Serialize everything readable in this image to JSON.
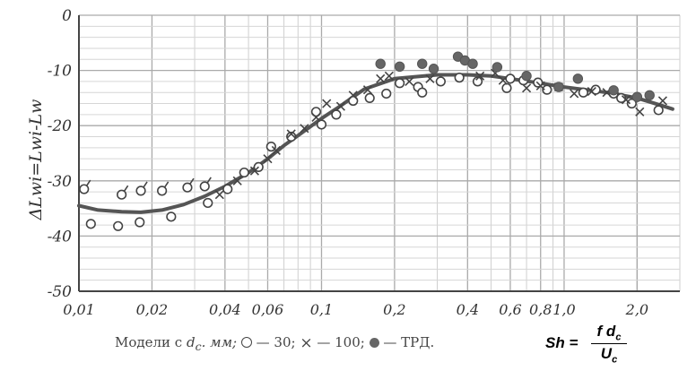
{
  "chart_data": {
    "type": "scatter",
    "title": "",
    "xlabel": "",
    "ylabel": "ΔLwi=Lwi-Lw",
    "xscale": "log",
    "xlim": [
      0.01,
      3.0
    ],
    "ylim": [
      -50,
      0
    ],
    "grid": true,
    "x_ticks": [
      {
        "value": 0.01,
        "label": "0,01"
      },
      {
        "value": 0.02,
        "label": "0,02"
      },
      {
        "value": 0.04,
        "label": "0,04"
      },
      {
        "value": 0.06,
        "label": "0,06"
      },
      {
        "value": 0.1,
        "label": "0,1"
      },
      {
        "value": 0.2,
        "label": "0,2"
      },
      {
        "value": 0.4,
        "label": "0,4"
      },
      {
        "value": 0.6,
        "label": "0,6"
      },
      {
        "value": 0.8,
        "label": "0,8"
      },
      {
        "value": 1.0,
        "label": "1,0"
      },
      {
        "value": 2.0,
        "label": "2,0"
      }
    ],
    "y_ticks": [
      {
        "value": 0,
        "label": "0"
      },
      {
        "value": -10,
        "label": "-10"
      },
      {
        "value": -20,
        "label": "-20"
      },
      {
        "value": -30,
        "label": "-30"
      },
      {
        "value": -40,
        "label": "-40"
      },
      {
        "value": -50,
        "label": "-50"
      }
    ],
    "series": [
      {
        "marker": "open-circle-tailed",
        "points": [
          [
            0.0105,
            -31.5
          ],
          [
            0.015,
            -32.5
          ],
          [
            0.018,
            -31.8
          ],
          [
            0.022,
            -31.8
          ],
          [
            0.028,
            -31.2
          ],
          [
            0.033,
            -31.0
          ]
        ]
      },
      {
        "marker": "open-circle",
        "points": [
          [
            0.0112,
            -37.8
          ],
          [
            0.0145,
            -38.2
          ],
          [
            0.0178,
            -37.5
          ],
          [
            0.024,
            -36.5
          ],
          [
            0.034,
            -34.0
          ],
          [
            0.041,
            -31.5
          ],
          [
            0.048,
            -28.5
          ],
          [
            0.055,
            -27.5
          ],
          [
            0.062,
            -23.8
          ],
          [
            0.075,
            -22.0
          ],
          [
            0.095,
            -17.5
          ],
          [
            0.1,
            -19.8
          ],
          [
            0.115,
            -18.0
          ],
          [
            0.135,
            -15.5
          ],
          [
            0.158,
            -15.0
          ],
          [
            0.185,
            -14.2
          ],
          [
            0.21,
            -12.3
          ],
          [
            0.25,
            -13.0
          ],
          [
            0.26,
            -14.0
          ],
          [
            0.31,
            -12.0
          ],
          [
            0.37,
            -11.3
          ],
          [
            0.44,
            -12.0
          ],
          [
            0.58,
            -13.2
          ],
          [
            0.6,
            -11.5
          ],
          [
            0.68,
            -11.8
          ],
          [
            0.78,
            -12.2
          ],
          [
            0.85,
            -13.5
          ],
          [
            1.2,
            -14.0
          ],
          [
            1.35,
            -13.5
          ],
          [
            1.6,
            -14.2
          ],
          [
            1.72,
            -15.0
          ],
          [
            1.9,
            -16.0
          ],
          [
            2.45,
            -17.2
          ]
        ]
      },
      {
        "marker": "cross",
        "points": [
          [
            0.038,
            -32.5
          ],
          [
            0.045,
            -30.0
          ],
          [
            0.053,
            -28.2
          ],
          [
            0.06,
            -26.0
          ],
          [
            0.065,
            -24.5
          ],
          [
            0.075,
            -21.5
          ],
          [
            0.085,
            -20.5
          ],
          [
            0.095,
            -18.5
          ],
          [
            0.105,
            -16.0
          ],
          [
            0.12,
            -16.5
          ],
          [
            0.135,
            -14.5
          ],
          [
            0.155,
            -13.5
          ],
          [
            0.175,
            -11.5
          ],
          [
            0.19,
            -11.0
          ],
          [
            0.23,
            -12.0
          ],
          [
            0.28,
            -11.5
          ],
          [
            0.45,
            -11.0
          ],
          [
            0.52,
            -10.5
          ],
          [
            0.56,
            -11.8
          ],
          [
            0.7,
            -13.2
          ],
          [
            0.8,
            -12.8
          ],
          [
            0.95,
            -13.0
          ],
          [
            1.1,
            -14.2
          ],
          [
            1.3,
            -13.8
          ],
          [
            1.5,
            -14.0
          ],
          [
            1.8,
            -15.3
          ],
          [
            2.05,
            -17.5
          ],
          [
            2.55,
            -15.5
          ]
        ]
      },
      {
        "marker": "filled-circle",
        "points": [
          [
            0.175,
            -8.8
          ],
          [
            0.21,
            -9.3
          ],
          [
            0.26,
            -8.8
          ],
          [
            0.29,
            -9.7
          ],
          [
            0.365,
            -7.5
          ],
          [
            0.39,
            -8.2
          ],
          [
            0.42,
            -8.8
          ],
          [
            0.53,
            -9.4
          ],
          [
            0.7,
            -11.0
          ],
          [
            0.95,
            -13.0
          ],
          [
            1.14,
            -11.5
          ],
          [
            1.6,
            -13.6
          ],
          [
            2.0,
            -14.8
          ],
          [
            2.25,
            -14.5
          ]
        ]
      }
    ],
    "fit_curve": [
      [
        0.01,
        -34.5
      ],
      [
        0.012,
        -35.3
      ],
      [
        0.015,
        -35.6
      ],
      [
        0.018,
        -35.7
      ],
      [
        0.022,
        -35.3
      ],
      [
        0.027,
        -34.3
      ],
      [
        0.033,
        -32.8
      ],
      [
        0.04,
        -31.0
      ],
      [
        0.05,
        -28.5
      ],
      [
        0.06,
        -26.0
      ],
      [
        0.07,
        -23.6
      ],
      [
        0.08,
        -21.8
      ],
      [
        0.1,
        -18.7
      ],
      [
        0.12,
        -16.4
      ],
      [
        0.15,
        -13.4
      ],
      [
        0.2,
        -11.5
      ],
      [
        0.25,
        -11.1
      ],
      [
        0.3,
        -10.8
      ],
      [
        0.4,
        -10.8
      ],
      [
        0.5,
        -11.0
      ],
      [
        0.6,
        -11.5
      ],
      [
        0.8,
        -12.3
      ],
      [
        1.0,
        -13.0
      ],
      [
        1.5,
        -14.0
      ],
      [
        2.0,
        -15.0
      ],
      [
        2.5,
        -16.3
      ],
      [
        2.8,
        -17.0
      ]
    ]
  },
  "legend": {
    "prefix": "Модели с",
    "dc_main": "d",
    "dc_sub": "с",
    "units": ". мм;",
    "open_circle_label": "— 30;",
    "cross_symbol": "×",
    "cross_label": "— 100;",
    "filled_label": "— ТРД."
  },
  "formula": {
    "lhs": "Sh =",
    "num_main": "f d",
    "num_sub": "c",
    "den_main": "U",
    "den_sub": "c"
  }
}
